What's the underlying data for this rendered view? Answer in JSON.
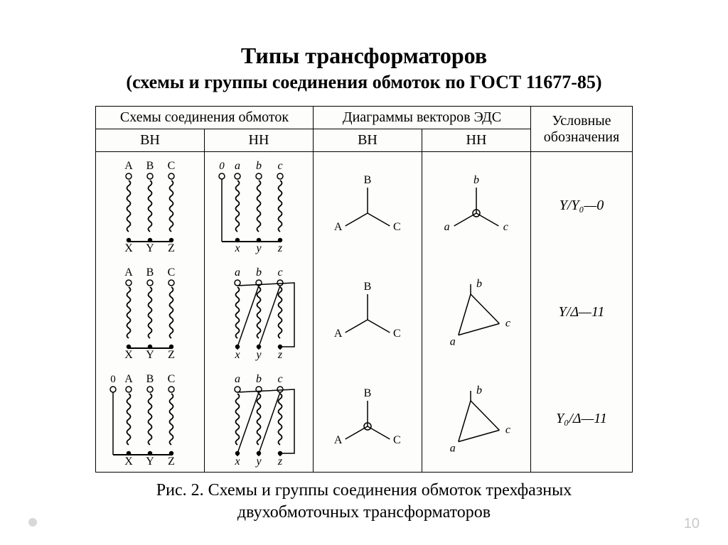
{
  "type": "engineering-diagram-table",
  "title": "Типы трансформаторов",
  "subtitle": "(схемы и группы соединения обмоток по ГОСТ 11677-85)",
  "caption_line1": "Рис. 2. Схемы и группы соединения обмоток трехфазных",
  "caption_line2": "двухобмоточных трансформаторов",
  "page_number": "10",
  "colors": {
    "background": "#ffffff",
    "table_bg": "#fdfdfb",
    "stroke": "#000000",
    "text": "#000000",
    "pagenum": "#c9c9c9"
  },
  "fonts": {
    "title_pt": 32,
    "subtitle_pt": 26,
    "header_pt": 20,
    "caption_pt": 24,
    "svg_label_pt": 16
  },
  "header": {
    "group1": "Схемы соединения обмоток",
    "group2": "Диаграммы векторов ЭДС",
    "group3": "Условные обозначения",
    "sub_hv1": "ВН",
    "sub_lv1": "НН",
    "sub_hv2": "ВН",
    "sub_lv2": "НН"
  },
  "rows": [
    {
      "hv_winding": {
        "type": "star",
        "neutral": false,
        "top": [
          "A",
          "B",
          "C"
        ],
        "bottom": [
          "X",
          "Y",
          "Z"
        ]
      },
      "lv_winding": {
        "type": "star",
        "neutral": true,
        "neutral_label": "0",
        "top": [
          "a",
          "b",
          "c"
        ],
        "bottom": [
          "x",
          "y",
          "z"
        ]
      },
      "hv_vector": {
        "type": "star",
        "labels": [
          "A",
          "B",
          "C"
        ]
      },
      "lv_vector": {
        "type": "star_neutral",
        "labels": [
          "a",
          "b",
          "c"
        ]
      },
      "designation": "Y/Y₀—0"
    },
    {
      "hv_winding": {
        "type": "star",
        "neutral": false,
        "top": [
          "A",
          "B",
          "C"
        ],
        "bottom": [
          "X",
          "Y",
          "Z"
        ]
      },
      "lv_winding": {
        "type": "delta",
        "top": [
          "a",
          "b",
          "c"
        ],
        "bottom": [
          "x",
          "y",
          "z"
        ]
      },
      "hv_vector": {
        "type": "star",
        "labels": [
          "A",
          "B",
          "C"
        ]
      },
      "lv_vector": {
        "type": "delta",
        "labels": [
          "a",
          "b",
          "c"
        ]
      },
      "designation": "Y/Δ—11"
    },
    {
      "hv_winding": {
        "type": "star",
        "neutral": true,
        "neutral_label": "0",
        "top": [
          "A",
          "B",
          "C"
        ],
        "bottom": [
          "X",
          "Y",
          "Z"
        ]
      },
      "lv_winding": {
        "type": "delta",
        "top": [
          "a",
          "b",
          "c"
        ],
        "bottom": [
          "x",
          "y",
          "z"
        ]
      },
      "hv_vector": {
        "type": "star_neutral",
        "labels": [
          "A",
          "B",
          "C"
        ]
      },
      "lv_vector": {
        "type": "delta",
        "labels": [
          "a",
          "b",
          "c"
        ]
      },
      "designation": "Y₀/Δ—11"
    }
  ]
}
